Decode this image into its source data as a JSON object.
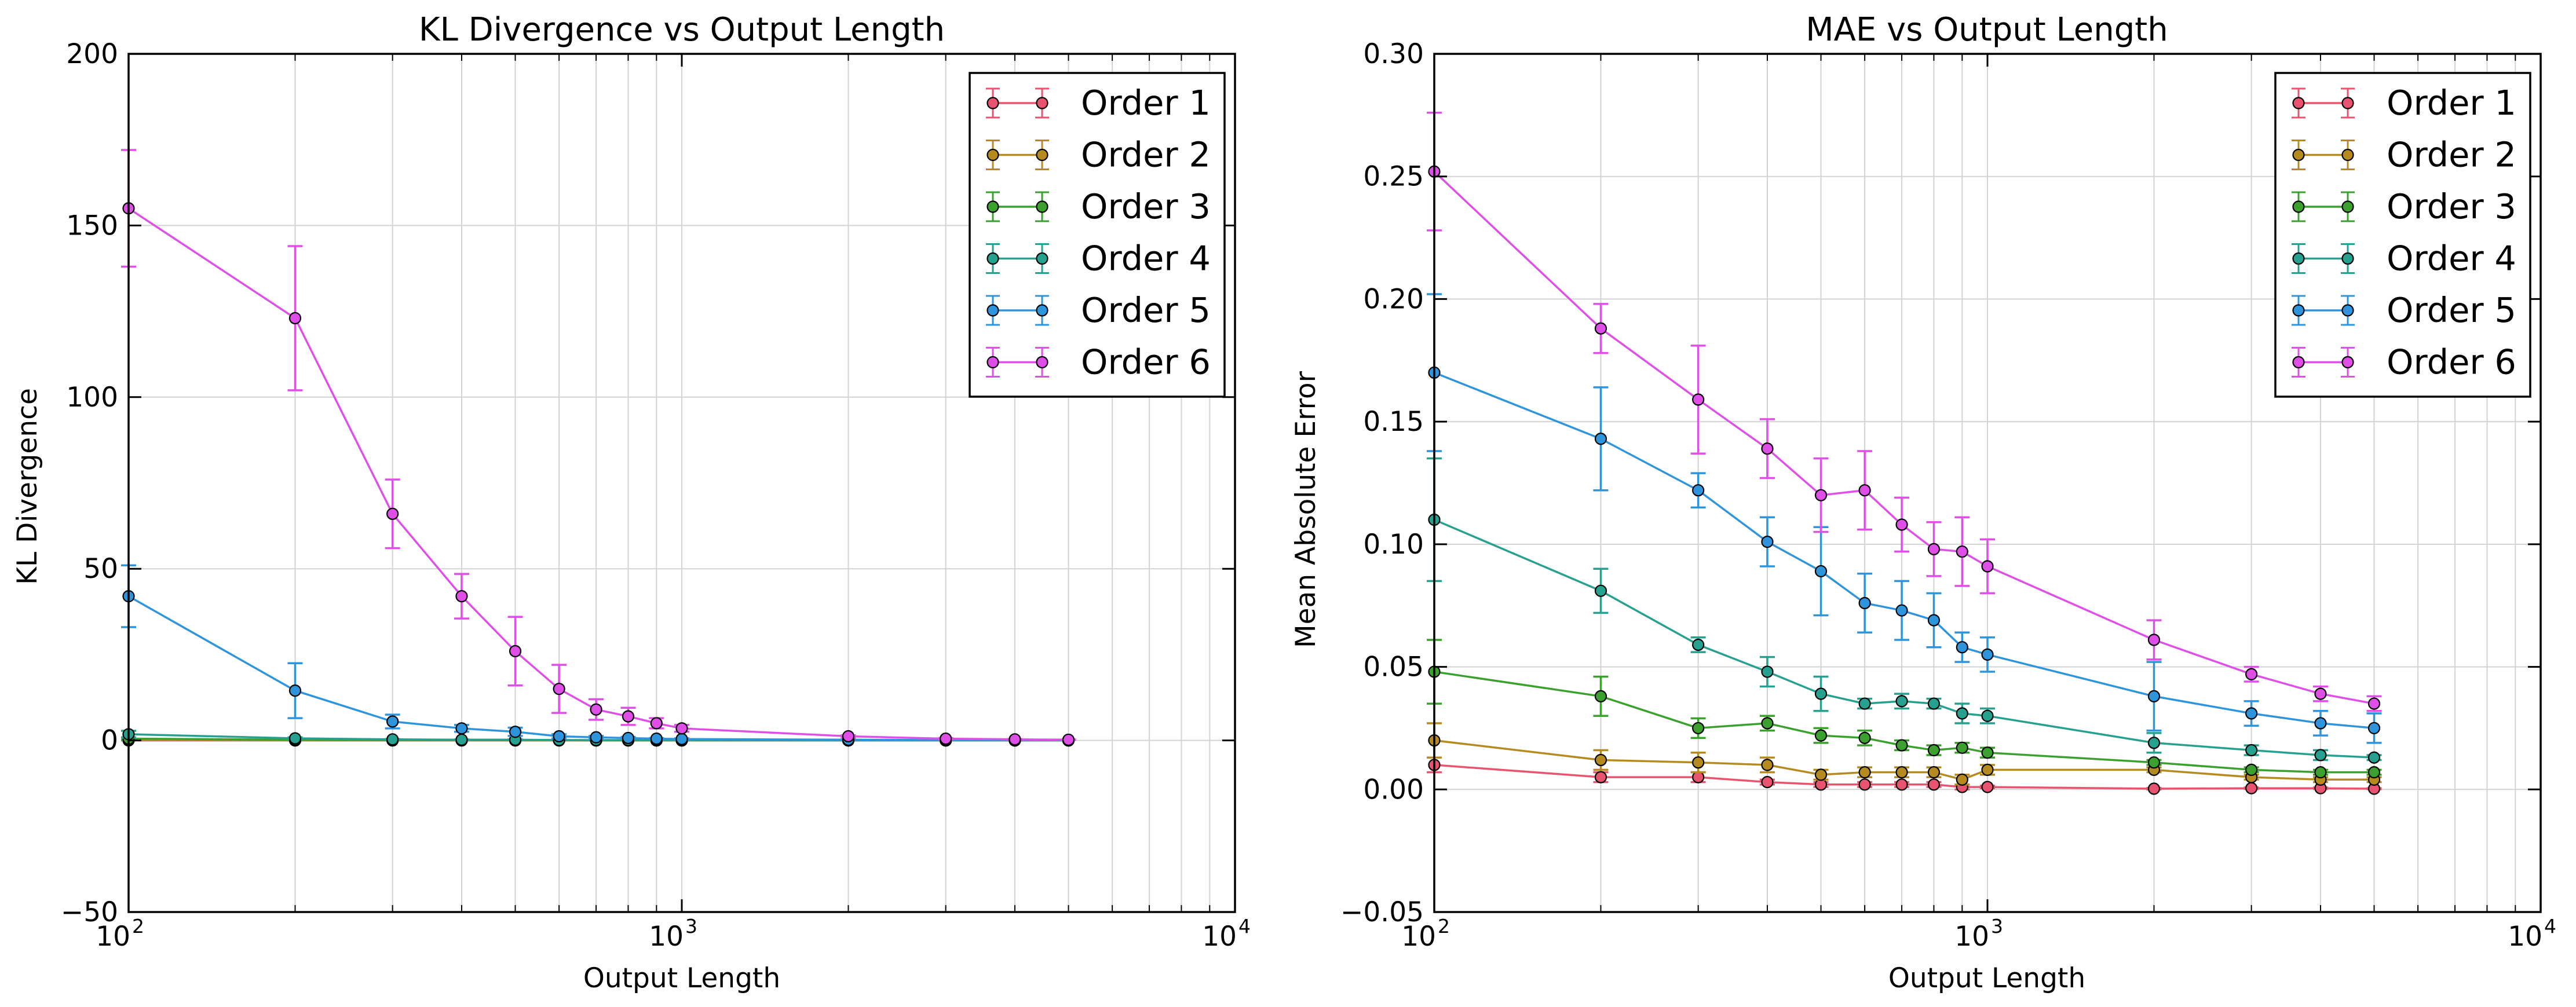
{
  "charts": [
    {
      "type": "line",
      "title": "KL Divergence vs Output Length",
      "xlabel": "Output Length",
      "ylabel": "KL Divergence",
      "x_scale": "log",
      "xlim": [
        100,
        10000
      ],
      "ylim": [
        -50,
        200
      ],
      "grid": true,
      "legend_placement": "top-right",
      "y_ticks": [
        "−50",
        "0",
        "50",
        "100",
        "150",
        "200"
      ],
      "y_tick_values": [
        -50,
        0,
        50,
        100,
        150,
        200
      ],
      "x_ticks": [
        {
          "base": "10",
          "exp": "2",
          "value": 100
        },
        {
          "base": "10",
          "exp": "3",
          "value": 1000
        },
        {
          "base": "10",
          "exp": "4",
          "value": 10000
        }
      ],
      "series": [
        {
          "name": "Order 1",
          "color": "#e8546f",
          "x": [
            100,
            200,
            300,
            400,
            500,
            600,
            700,
            800,
            900,
            1000,
            2000,
            3000,
            4000,
            5000
          ],
          "y": [
            0,
            0,
            0,
            0,
            0,
            0,
            0,
            0,
            0,
            0,
            0,
            0,
            0,
            0
          ],
          "err": [
            0,
            0,
            0,
            0,
            0,
            0,
            0,
            0,
            0,
            0,
            0,
            0,
            0,
            0
          ]
        },
        {
          "name": "Order 2",
          "color": "#b58a1f",
          "x": [
            100,
            200,
            300,
            400,
            500,
            600,
            700,
            800,
            900,
            1000,
            2000,
            3000,
            4000,
            5000
          ],
          "y": [
            0.1,
            0,
            0,
            0,
            0,
            0,
            0,
            0,
            0,
            0,
            0,
            0,
            0,
            0
          ],
          "err": [
            0.1,
            0,
            0,
            0,
            0,
            0,
            0,
            0,
            0,
            0,
            0,
            0,
            0,
            0
          ]
        },
        {
          "name": "Order 3",
          "color": "#3ba02d",
          "x": [
            100,
            200,
            300,
            400,
            500,
            600,
            700,
            800,
            900,
            1000,
            2000,
            3000,
            4000,
            5000
          ],
          "y": [
            0.5,
            0.2,
            0.1,
            0.1,
            0.1,
            0.1,
            0,
            0,
            0,
            0,
            0,
            0,
            0,
            0
          ],
          "err": [
            0.4,
            0.1,
            0.1,
            0,
            0,
            0,
            0,
            0,
            0,
            0,
            0,
            0,
            0,
            0
          ]
        },
        {
          "name": "Order 4",
          "color": "#26a08f",
          "x": [
            100,
            200,
            300,
            400,
            500,
            600,
            700,
            800,
            900,
            1000,
            2000,
            3000,
            4000,
            5000
          ],
          "y": [
            1.8,
            0.6,
            0.3,
            0.2,
            0.2,
            0.1,
            0.1,
            0.1,
            0.1,
            0.1,
            0,
            0,
            0,
            0
          ],
          "err": [
            1,
            0.3,
            0.1,
            0.1,
            0.1,
            0,
            0,
            0,
            0,
            0,
            0,
            0,
            0,
            0
          ]
        },
        {
          "name": "Order 5",
          "color": "#2e95dd",
          "x": [
            100,
            200,
            300,
            400,
            500,
            600,
            700,
            800,
            900,
            1000,
            2000,
            3000,
            4000,
            5000
          ],
          "y": [
            42,
            14.5,
            5.5,
            3.5,
            2.5,
            1.2,
            0.9,
            0.7,
            0.5,
            0.4,
            0.2,
            0.1,
            0.1,
            0.1
          ],
          "err": [
            9,
            8,
            2,
            1,
            1.2,
            0.6,
            0.4,
            0.3,
            0.2,
            0.2,
            0.1,
            0,
            0,
            0
          ]
        },
        {
          "name": "Order 6",
          "color": "#e04ee8",
          "x": [
            100,
            200,
            300,
            400,
            500,
            600,
            700,
            800,
            900,
            1000,
            2000,
            3000,
            4000,
            5000
          ],
          "y": [
            155,
            123,
            66,
            42,
            26,
            15,
            9,
            7,
            5,
            3.5,
            1.2,
            0.5,
            0.3,
            0.2
          ],
          "err": [
            17,
            21,
            10,
            6.5,
            10,
            7,
            3,
            2.5,
            1.5,
            1,
            0.3,
            0.2,
            0.1,
            0.1
          ]
        }
      ]
    },
    {
      "type": "line",
      "title": "MAE vs Output Length",
      "xlabel": "Output Length",
      "ylabel": "Mean Absolute Error",
      "x_scale": "log",
      "xlim": [
        100,
        10000
      ],
      "ylim": [
        -0.05,
        0.3
      ],
      "grid": true,
      "legend_placement": "top-right",
      "y_ticks": [
        "−0.05",
        "0.00",
        "0.05",
        "0.10",
        "0.15",
        "0.20",
        "0.25",
        "0.30"
      ],
      "y_tick_values": [
        -0.05,
        0,
        0.05,
        0.1,
        0.15,
        0.2,
        0.25,
        0.3
      ],
      "x_ticks": [
        {
          "base": "10",
          "exp": "2",
          "value": 100
        },
        {
          "base": "10",
          "exp": "3",
          "value": 1000
        },
        {
          "base": "10",
          "exp": "4",
          "value": 10000
        }
      ],
      "series": [
        {
          "name": "Order 1",
          "color": "#e8546f",
          "x": [
            100,
            200,
            300,
            400,
            500,
            600,
            700,
            800,
            900,
            1000,
            2000,
            3000,
            4000,
            5000
          ],
          "y": [
            0.01,
            0.005,
            0.005,
            0.003,
            0.002,
            0.002,
            0.002,
            0.002,
            0.001,
            0.001,
            0.0003,
            0.0005,
            0.0005,
            0.0003
          ],
          "err": [
            0.003,
            0.002,
            0.002,
            0.001,
            0.001,
            0.001,
            0.001,
            0.001,
            0.001,
            0.0005,
            0.0003,
            0.0003,
            0.0003,
            0.0002
          ]
        },
        {
          "name": "Order 2",
          "color": "#b58a1f",
          "x": [
            100,
            200,
            300,
            400,
            500,
            600,
            700,
            800,
            900,
            1000,
            2000,
            3000,
            4000,
            5000
          ],
          "y": [
            0.02,
            0.012,
            0.011,
            0.01,
            0.006,
            0.007,
            0.007,
            0.007,
            0.004,
            0.008,
            0.008,
            0.005,
            0.004,
            0.004
          ],
          "err": [
            0.007,
            0.004,
            0.004,
            0.003,
            0.002,
            0.002,
            0.002,
            0.002,
            0.002,
            0.002,
            0.001,
            0.001,
            0.001,
            0.001
          ]
        },
        {
          "name": "Order 3",
          "color": "#3ba02d",
          "x": [
            100,
            200,
            300,
            400,
            500,
            600,
            700,
            800,
            900,
            1000,
            2000,
            3000,
            4000,
            5000
          ],
          "y": [
            0.048,
            0.038,
            0.025,
            0.027,
            0.022,
            0.021,
            0.018,
            0.016,
            0.017,
            0.015,
            0.011,
            0.008,
            0.007,
            0.007
          ],
          "err": [
            0.013,
            0.008,
            0.004,
            0.003,
            0.003,
            0.003,
            0.002,
            0.002,
            0.002,
            0.002,
            0.001,
            0.001,
            0.001,
            0.001
          ]
        },
        {
          "name": "Order 4",
          "color": "#26a08f",
          "x": [
            100,
            200,
            300,
            400,
            500,
            600,
            700,
            800,
            900,
            1000,
            2000,
            3000,
            4000,
            5000
          ],
          "y": [
            0.11,
            0.081,
            0.059,
            0.048,
            0.039,
            0.035,
            0.036,
            0.035,
            0.031,
            0.03,
            0.019,
            0.016,
            0.014,
            0.013
          ],
          "err": [
            0.025,
            0.009,
            0.003,
            0.006,
            0.007,
            0.002,
            0.003,
            0.002,
            0.004,
            0.003,
            0.004,
            0.002,
            0.002,
            0.001
          ]
        },
        {
          "name": "Order 5",
          "color": "#2e95dd",
          "x": [
            100,
            200,
            300,
            400,
            500,
            600,
            700,
            800,
            900,
            1000,
            2000,
            3000,
            4000,
            5000
          ],
          "y": [
            0.17,
            0.143,
            0.122,
            0.101,
            0.089,
            0.076,
            0.073,
            0.069,
            0.058,
            0.055,
            0.038,
            0.031,
            0.027,
            0.025
          ],
          "err": [
            0.032,
            0.021,
            0.007,
            0.01,
            0.018,
            0.012,
            0.012,
            0.011,
            0.006,
            0.007,
            0.014,
            0.005,
            0.005,
            0.006
          ]
        },
        {
          "name": "Order 6",
          "color": "#e04ee8",
          "x": [
            100,
            200,
            300,
            400,
            500,
            600,
            700,
            800,
            900,
            1000,
            2000,
            3000,
            4000,
            5000
          ],
          "y": [
            0.252,
            0.188,
            0.159,
            0.139,
            0.12,
            0.122,
            0.108,
            0.098,
            0.097,
            0.091,
            0.061,
            0.047,
            0.039,
            0.035
          ],
          "err": [
            0.024,
            0.01,
            0.022,
            0.012,
            0.015,
            0.016,
            0.011,
            0.011,
            0.014,
            0.011,
            0.008,
            0.003,
            0.003,
            0.003
          ]
        }
      ]
    }
  ]
}
